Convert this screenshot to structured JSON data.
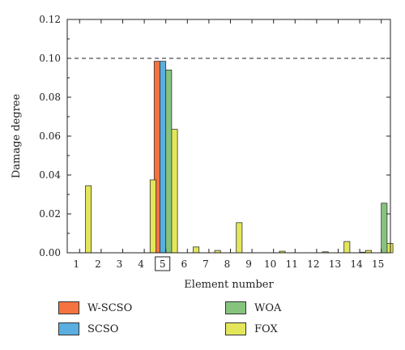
{
  "chart_data": {
    "type": "bar",
    "title": "",
    "xlabel": "Element number",
    "ylabel": "Damage degree",
    "categories": [
      "1",
      "2",
      "3",
      "4",
      "5",
      "6",
      "7",
      "8",
      "9",
      "10",
      "11",
      "12",
      "13",
      "14",
      "15"
    ],
    "highlighted_category": "5",
    "ylim": [
      0,
      0.12
    ],
    "yticks": [
      "0.00",
      "0.02",
      "0.04",
      "0.06",
      "0.08",
      "0.10",
      "0.12"
    ],
    "reference_line": {
      "value": 0.1,
      "style": "dashed"
    },
    "grid": false,
    "legend_placement": "bottom",
    "series": [
      {
        "name": "W-SCSO",
        "color": "#f4733f",
        "values": [
          0,
          0,
          0,
          0,
          0.0985,
          0,
          0,
          0,
          0,
          0,
          0,
          0,
          0,
          0,
          0
        ]
      },
      {
        "name": "SCSO",
        "color": "#5aaee0",
        "values": [
          0,
          0,
          0,
          0,
          0.0985,
          0,
          0,
          0,
          0,
          0,
          0,
          0,
          0,
          0,
          0
        ]
      },
      {
        "name": "WOA",
        "color": "#86c47e",
        "values": [
          0,
          0,
          0,
          0,
          0.094,
          0,
          0,
          0,
          0,
          0,
          0,
          0,
          0,
          0.0003,
          0.0255
        ]
      },
      {
        "name": "FOX",
        "color": "#e3e65a",
        "values": [
          0.0345,
          0,
          0,
          0.0375,
          0.0635,
          0.003,
          0.0012,
          0.0155,
          0,
          0.0008,
          0,
          0.0005,
          0.0058,
          0.0012,
          0.0048
        ]
      }
    ]
  }
}
